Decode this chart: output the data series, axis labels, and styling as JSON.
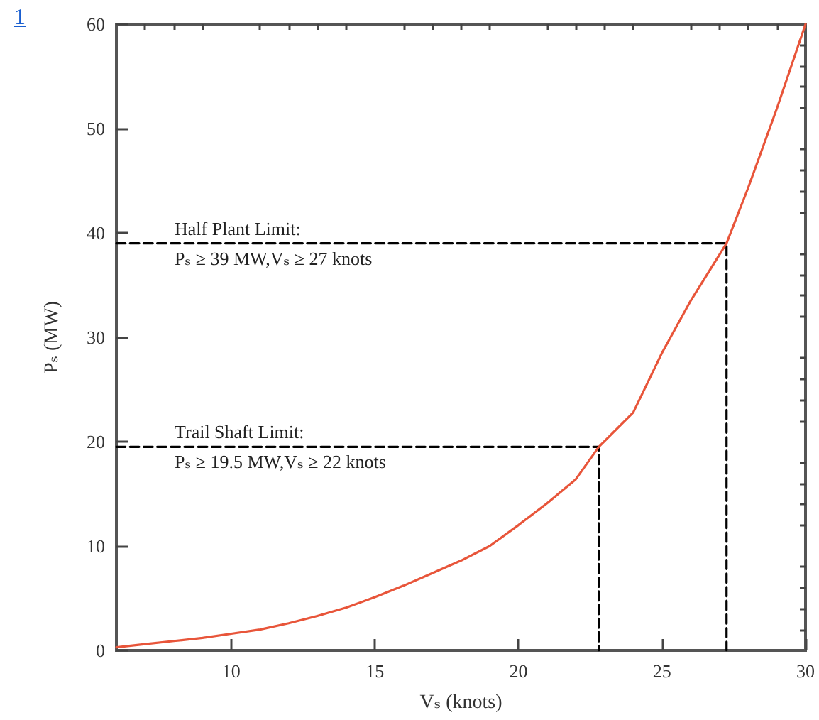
{
  "chart_data": {
    "type": "line",
    "xlabel": "Vₛ (knots)",
    "ylabel": "Pₛ (MW)",
    "xlim": [
      6,
      30
    ],
    "xticks": [
      {
        "value": 7,
        "label": null
      },
      {
        "value": 8,
        "label": null
      },
      {
        "value": 9,
        "label": null
      },
      10,
      {
        "value": 11,
        "label": null
      },
      {
        "value": 12,
        "label": null
      },
      {
        "value": 13,
        "label": null
      },
      {
        "value": 14,
        "label": null
      },
      15,
      {
        "value": 16,
        "label": null
      },
      {
        "value": 17,
        "label": null
      },
      {
        "value": 18,
        "label": null
      },
      {
        "value": 19,
        "label": null
      },
      20,
      {
        "value": 21,
        "label": null
      },
      {
        "value": 22,
        "label": null
      },
      {
        "value": 23,
        "label": null
      },
      {
        "value": 24,
        "label": null
      },
      25,
      {
        "value": 26,
        "label": null
      },
      {
        "value": 27,
        "label": null
      },
      {
        "value": 28,
        "label": null
      },
      {
        "value": 29,
        "label": null
      },
      30
    ],
    "ylim": [
      0,
      60
    ],
    "yticks": [
      0,
      {
        "value": 2,
        "label": null
      },
      {
        "value": 4,
        "label": null
      },
      {
        "value": 6,
        "label": null
      },
      {
        "value": 8,
        "label": null
      },
      10,
      {
        "value": 12,
        "label": null
      },
      {
        "value": 14,
        "label": null
      },
      {
        "value": 16,
        "label": null
      },
      {
        "value": 18,
        "label": null
      },
      20,
      {
        "value": 22,
        "label": null
      },
      {
        "value": 24,
        "label": null
      },
      {
        "value": 26,
        "label": null
      },
      {
        "value": 28,
        "label": null
      },
      30,
      {
        "value": 32,
        "label": null
      },
      {
        "value": 34,
        "label": null
      },
      {
        "value": 36,
        "label": null
      },
      {
        "value": 38,
        "label": null
      },
      40,
      {
        "value": 42,
        "label": null
      },
      {
        "value": 44,
        "label": null
      },
      {
        "value": 46,
        "label": null
      },
      {
        "value": 48,
        "label": null
      },
      50,
      {
        "value": 52,
        "label": null
      },
      {
        "value": 54,
        "label": null
      },
      {
        "value": 56,
        "label": null
      },
      {
        "value": 58,
        "label": null
      },
      60
    ],
    "grid": false,
    "marker": "none",
    "series": [
      {
        "color": "#e8553a",
        "line_style": "solid",
        "x": [
          6,
          7,
          8,
          9,
          10,
          11,
          12,
          13,
          14,
          15,
          16,
          17,
          18,
          19,
          20,
          21,
          22,
          22.8,
          24,
          25,
          26,
          27.25,
          28,
          29,
          30
        ],
        "values": [
          0.3,
          0.6,
          0.9,
          1.2,
          1.6,
          2.0,
          2.6,
          3.3,
          4.1,
          5.1,
          6.2,
          7.4,
          8.6,
          10.0,
          12.0,
          14.1,
          16.4,
          19.5,
          22.8,
          28.5,
          33.5,
          39,
          44.3,
          51.9,
          60
        ]
      },
      {
        "color": "#000000",
        "line_style": "dashed",
        "x": [
          6,
          27.25,
          27.25
        ],
        "values": [
          39,
          39,
          0
        ]
      },
      {
        "color": "#000000",
        "line_style": "dashed",
        "x": [
          6,
          22.8,
          22.8
        ],
        "values": [
          19.5,
          19.5,
          0
        ]
      }
    ],
    "annotations": [
      "Half Plant Limit:",
      "Pₛ ≥ 39 MW,Vₛ ≥ 27 knots",
      "Trail Shaft Limit:",
      "Pₛ ≥ 19.5 MW,Vₛ ≥ 22 knots",
      "1"
    ]
  }
}
